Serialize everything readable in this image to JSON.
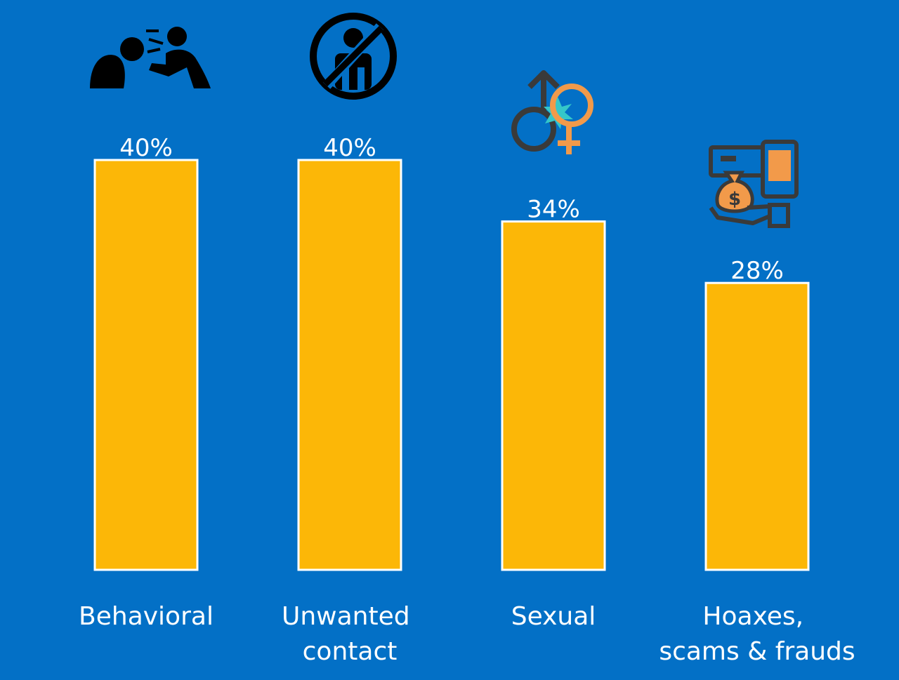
{
  "chart_data": {
    "type": "bar",
    "categories": [
      [
        "Behavioral"
      ],
      [
        "Unwanted",
        "contact"
      ],
      [
        "Sexual"
      ],
      [
        "Hoaxes,",
        "scams & frauds"
      ]
    ],
    "values": [
      40,
      40,
      34,
      28
    ],
    "value_labels": [
      "40%",
      "40%",
      "34%",
      "28%"
    ],
    "ylim": [
      0,
      40
    ],
    "title": "",
    "xlabel": "",
    "ylabel": "",
    "grid": false
  },
  "icons": [
    "shouting-person-icon",
    "no-contact-icon",
    "gender-symbols-icon",
    "money-scam-icon"
  ],
  "colors": {
    "background": "#0370c6",
    "bar_fill": "#fcb707",
    "bar_stroke": "#ffffff",
    "label": "#ffffff",
    "icon_dark": "#3a3a3a",
    "icon_orange": "#f29a4a",
    "icon_teal": "#35c7c9"
  }
}
